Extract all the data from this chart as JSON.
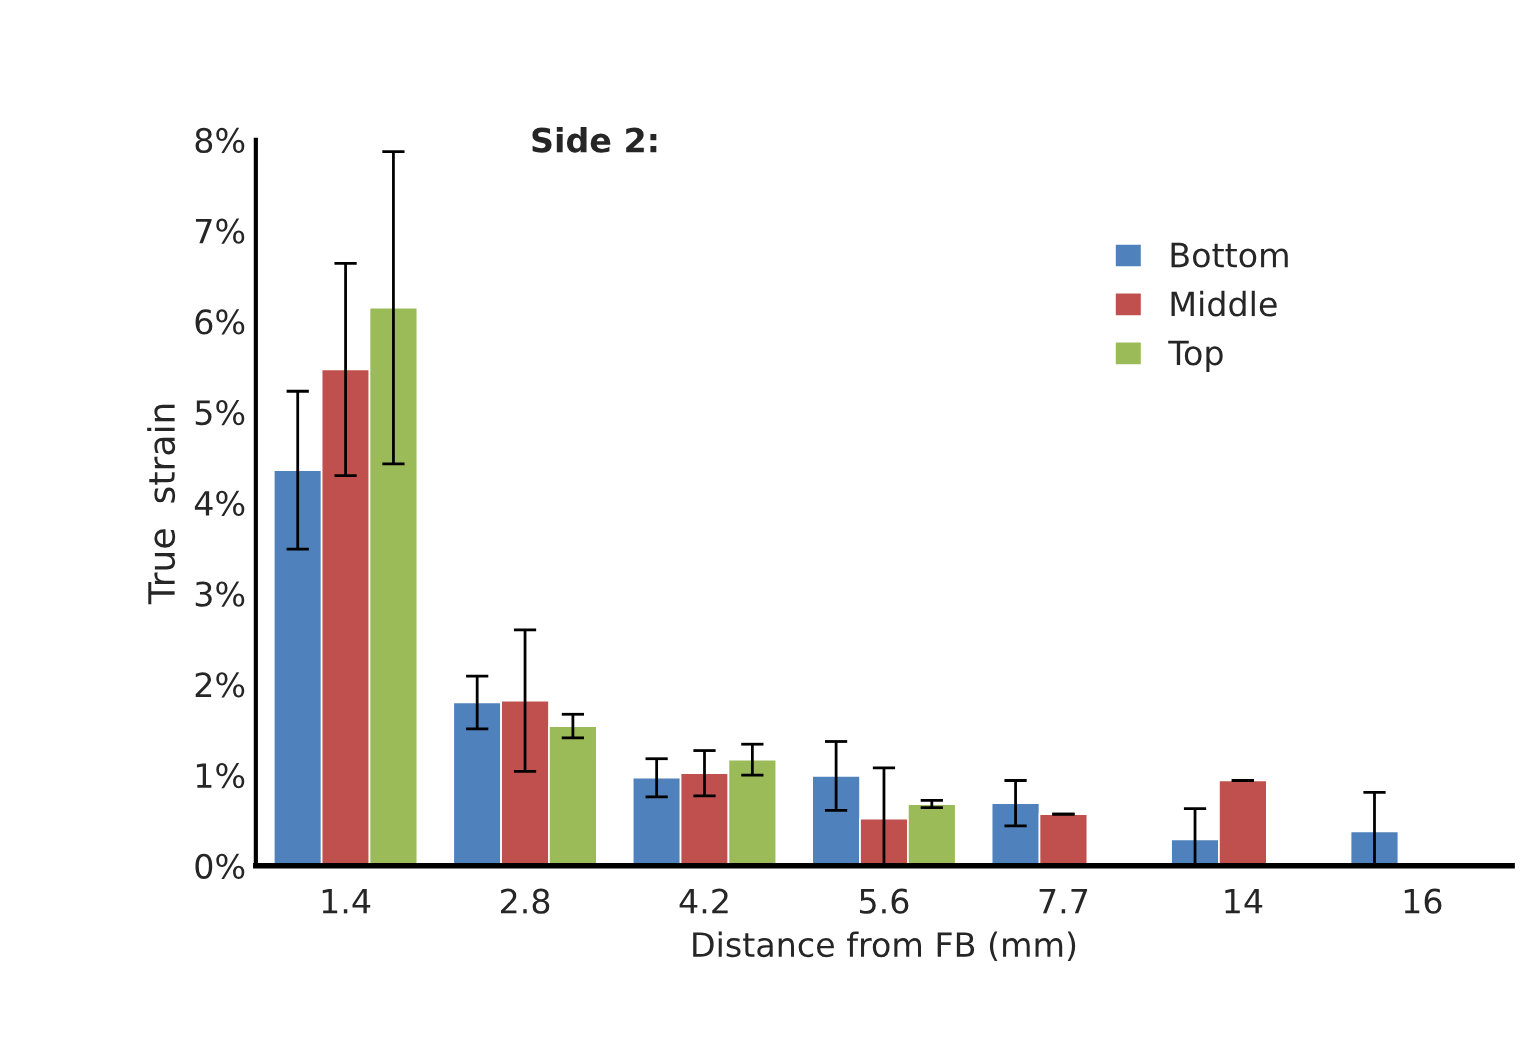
{
  "chart_data": {
    "type": "bar",
    "title": "Side 2:",
    "xlabel": "Distance from FB (mm)",
    "ylabel": "True  strain",
    "categories": [
      "1.4",
      "2.8",
      "4.2",
      "5.6",
      "7.7",
      "14",
      "16"
    ],
    "series": [
      {
        "name": "Bottom",
        "color": "#4f81bd",
        "values": [
          4.36,
          1.8,
          0.97,
          0.99,
          0.69,
          0.29,
          0.38
        ],
        "errors": [
          0.87,
          0.29,
          0.21,
          0.38,
          0.25,
          0.34,
          0.43
        ]
      },
      {
        "name": "Middle",
        "color": "#c0504d",
        "values": [
          5.47,
          1.82,
          1.02,
          0.52,
          0.57,
          0.94,
          null
        ],
        "errors": [
          1.17,
          0.78,
          0.25,
          0.56,
          0,
          0,
          null
        ]
      },
      {
        "name": "Top",
        "color": "#9bbb59",
        "values": [
          6.15,
          1.54,
          1.17,
          0.68,
          null,
          null,
          null
        ],
        "errors": [
          1.72,
          0.13,
          0.17,
          0.04,
          null,
          null,
          null
        ]
      }
    ],
    "ylim": [
      0,
      8
    ],
    "yticks": [
      {
        "value": 0,
        "label": "0%"
      },
      {
        "value": 1,
        "label": "1%"
      },
      {
        "value": 2,
        "label": "2%"
      },
      {
        "value": 3,
        "label": "3%"
      },
      {
        "value": 4,
        "label": "4%"
      },
      {
        "value": 5,
        "label": "5%"
      },
      {
        "value": 6,
        "label": "6%"
      },
      {
        "value": 7,
        "label": "7%"
      },
      {
        "value": 8,
        "label": "8%"
      }
    ],
    "grid": false,
    "legend": "right"
  }
}
